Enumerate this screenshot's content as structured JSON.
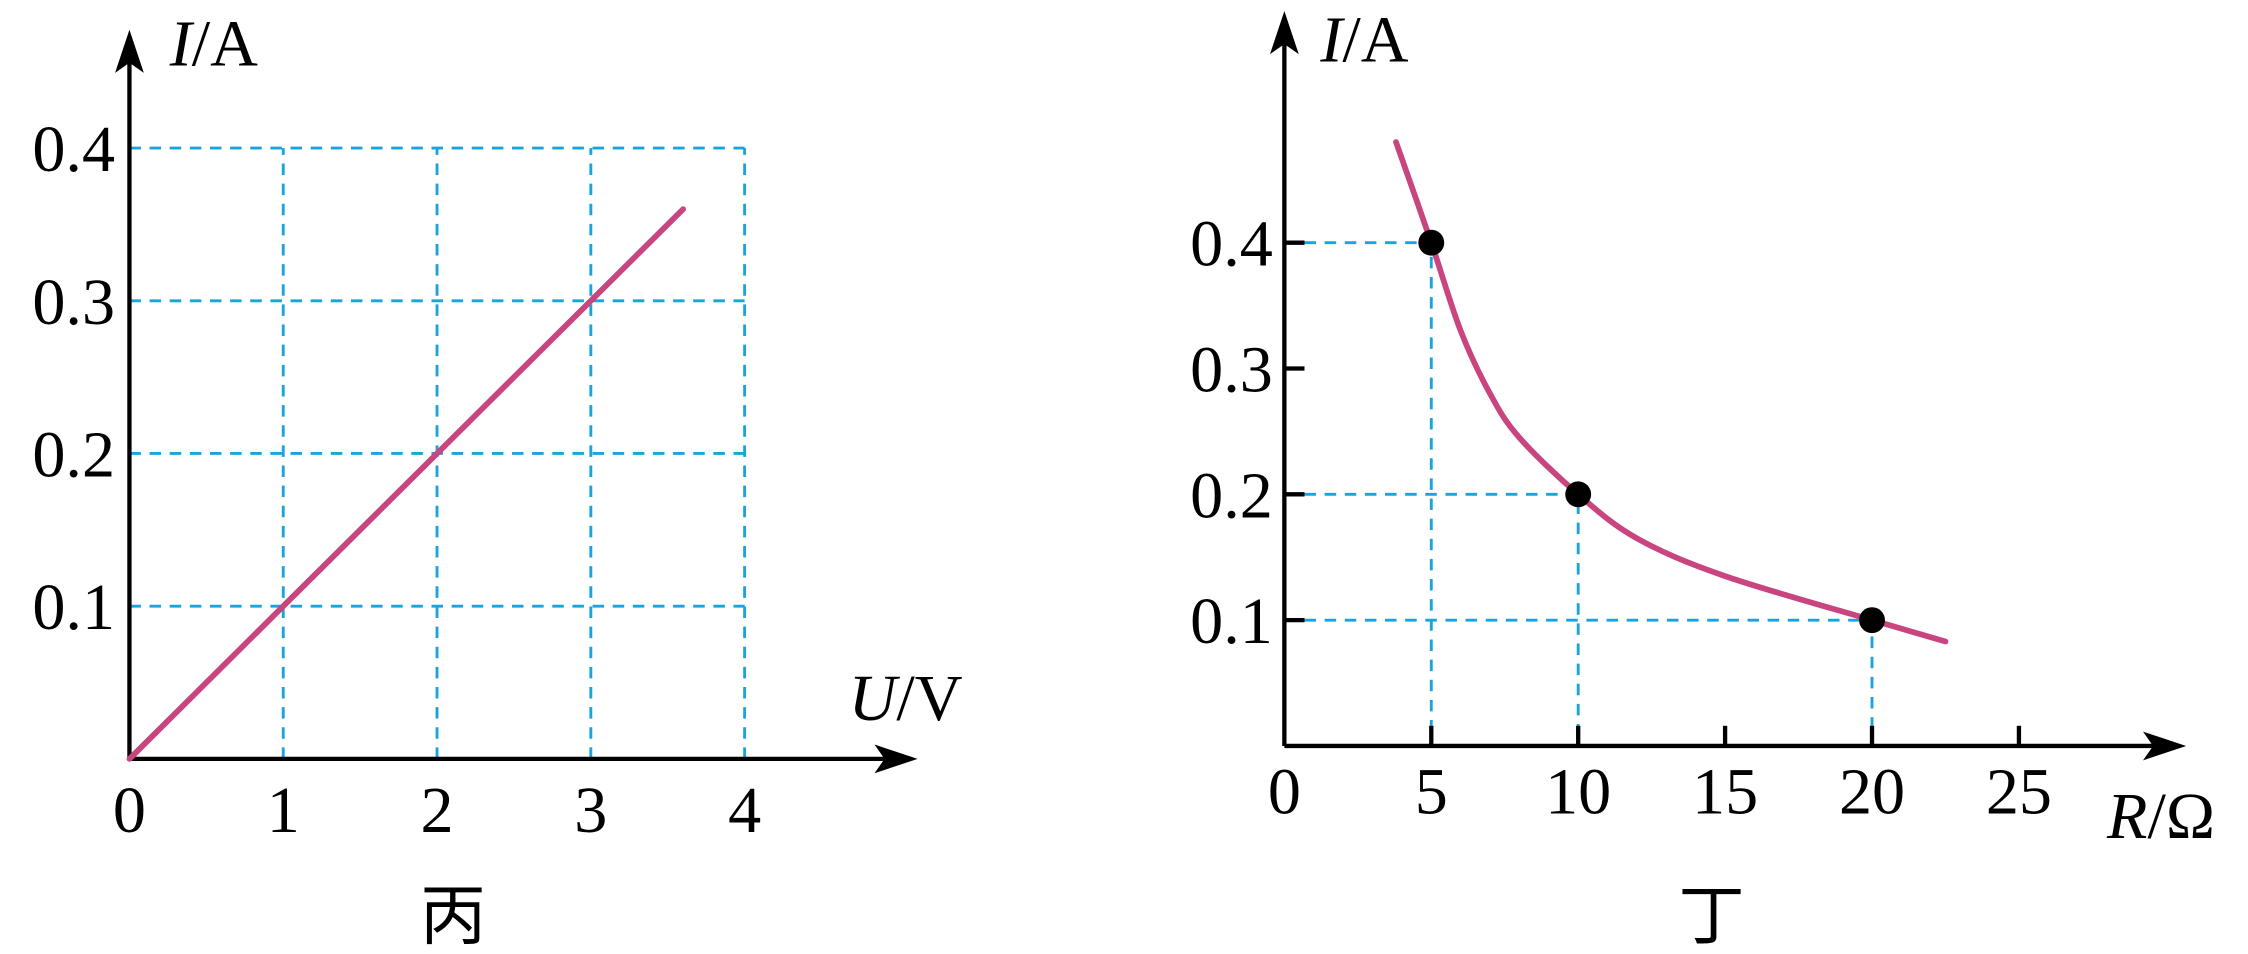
{
  "chart_data": [
    {
      "type": "line",
      "xlabel": "U/V",
      "ylabel": "I/A",
      "caption": "丙",
      "x": [
        0,
        3.6
      ],
      "values": [
        0,
        0.36
      ],
      "color": "#c8457f",
      "xlim": [
        0,
        5.05
      ],
      "ylim": [
        0,
        0.47
      ],
      "xticks": [
        0,
        1,
        2,
        3,
        4
      ],
      "yticks": [
        0.1,
        0.2,
        0.3,
        0.4
      ],
      "grid": true,
      "grid_color": "#1aa3dc"
    },
    {
      "type": "curve",
      "xlabel": "R/Ω",
      "ylabel": "I/A",
      "caption": "丁",
      "x": [
        3.8,
        5,
        6,
        7,
        8,
        10,
        12,
        15,
        20,
        22.5
      ],
      "values": [
        0.48,
        0.4,
        0.33,
        0.28,
        0.245,
        0.2,
        0.165,
        0.135,
        0.1,
        0.083
      ],
      "color": "#c8457f",
      "points": {
        "x": [
          5,
          10,
          20
        ],
        "values": [
          0.4,
          0.2,
          0.1
        ],
        "color": "#000000"
      },
      "xlim": [
        0,
        30.3
      ],
      "ylim": [
        0,
        0.575
      ],
      "xticks": [
        0,
        5,
        10,
        15,
        20,
        25
      ],
      "yticks": [
        0.1,
        0.2,
        0.3,
        0.4
      ],
      "grid": false,
      "grid_color": "#1aa3dc"
    }
  ]
}
